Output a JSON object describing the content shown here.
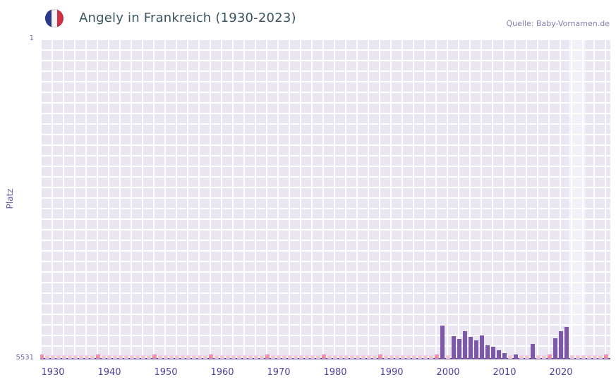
{
  "header": {
    "title": "Angely in Frankreich (1930-2023)",
    "source": "Quelle: Baby-Vornamen.de",
    "flag": "france-flag-icon"
  },
  "y_axis": {
    "label": "Platz",
    "top_tick": "1",
    "bottom_tick": "5531"
  },
  "chart_data": {
    "type": "bar",
    "title": "Angely in Frankreich (1930-2023)",
    "xlabel": "",
    "ylabel": "Platz",
    "y_min": 1,
    "y_max": 5531,
    "y_inverted": true,
    "x_ticks": [
      1930,
      1940,
      1950,
      1960,
      1970,
      1980,
      1990,
      2000,
      2010,
      2020
    ],
    "x_range": [
      1928,
      2028
    ],
    "grid": true,
    "legend": false,
    "points": [
      {
        "year": 1999,
        "rank": 4950
      },
      {
        "year": 2001,
        "rank": 5130
      },
      {
        "year": 2002,
        "rank": 5180
      },
      {
        "year": 2003,
        "rank": 5050
      },
      {
        "year": 2004,
        "rank": 5140
      },
      {
        "year": 2005,
        "rank": 5200
      },
      {
        "year": 2006,
        "rank": 5120
      },
      {
        "year": 2007,
        "rank": 5290
      },
      {
        "year": 2008,
        "rank": 5310
      },
      {
        "year": 2009,
        "rank": 5370
      },
      {
        "year": 2010,
        "rank": 5420
      },
      {
        "year": 2012,
        "rank": 5450
      },
      {
        "year": 2015,
        "rank": 5260
      },
      {
        "year": 2019,
        "rank": 5170
      },
      {
        "year": 2020,
        "rank": 5050
      },
      {
        "year": 2021,
        "rank": 4970
      }
    ],
    "no_data_strip": {
      "start": 1928,
      "end": 2028,
      "dark_every": 10
    },
    "colors": {
      "bar": "#7d58a6",
      "plot_bg": "#eae5f2",
      "grid": "#ffffff",
      "axis_line": "#5b4f9e",
      "strip_light": "#f3cbdb",
      "strip_dark": "#ec93ab",
      "tick": "#4f46a0"
    }
  }
}
